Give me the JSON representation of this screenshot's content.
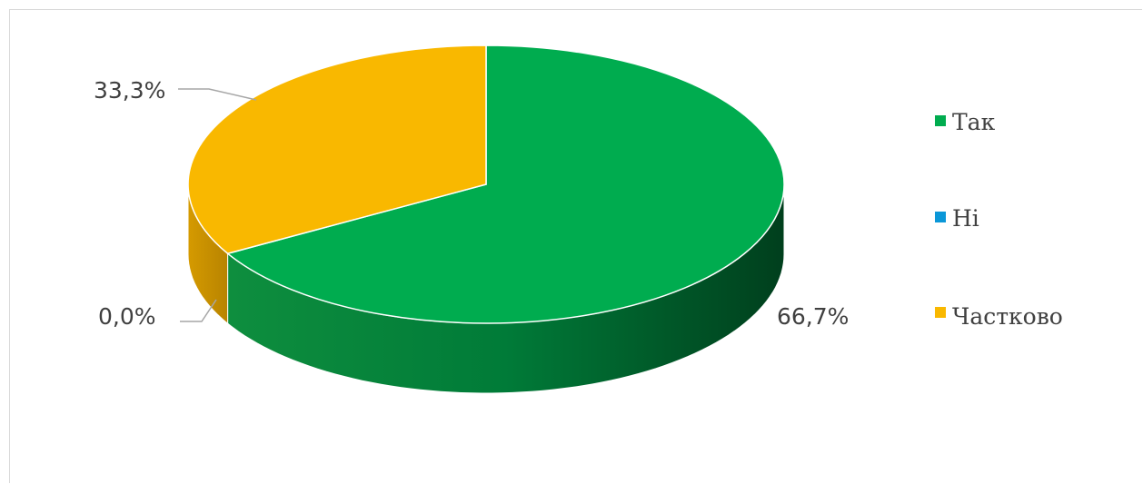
{
  "chart_data": {
    "type": "pie",
    "style": "3d",
    "categories": [
      "Так",
      "Ні",
      "Частково"
    ],
    "values": [
      66.7,
      0.0,
      33.3
    ],
    "data_labels": [
      "66,7%",
      "0,0%",
      "33,3%"
    ],
    "colors": [
      "#00ac4f",
      "#0b97d8",
      "#f9b800"
    ],
    "legend": "right"
  }
}
